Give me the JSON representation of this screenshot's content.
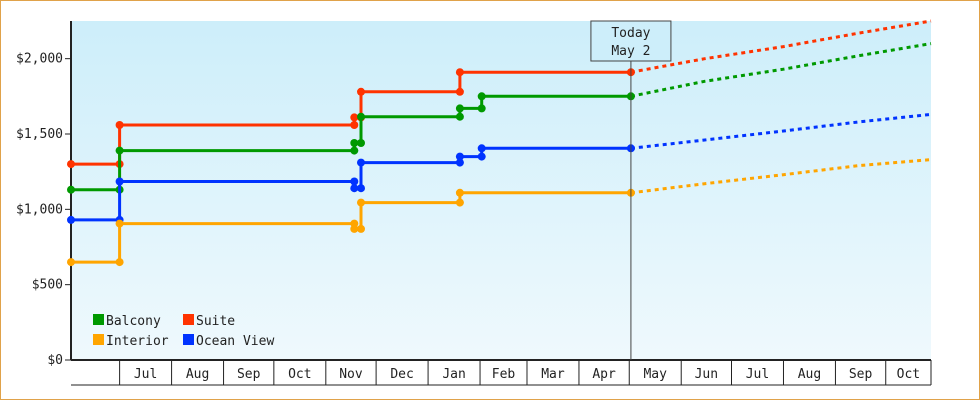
{
  "chart_data": {
    "type": "line",
    "step": true,
    "y_axis": {
      "min": 0,
      "max": 2250,
      "ticks": [
        {
          "value": 0,
          "label": "$0"
        },
        {
          "value": 500,
          "label": "$500"
        },
        {
          "value": 1000,
          "label": "$1,000"
        },
        {
          "value": 1500,
          "label": "$1,500"
        },
        {
          "value": 2000,
          "label": "$2,000"
        }
      ]
    },
    "x_axis": {
      "start": "2024-06-02",
      "end": "2025-10-28",
      "month_labels": [
        {
          "label": "Jul",
          "start": "2024-07-01",
          "end": "2024-08-01"
        },
        {
          "label": "Aug",
          "start": "2024-08-01",
          "end": "2024-09-01"
        },
        {
          "label": "Sep",
          "start": "2024-09-01",
          "end": "2024-10-01"
        },
        {
          "label": "Oct",
          "start": "2024-10-01",
          "end": "2024-11-01"
        },
        {
          "label": "Nov",
          "start": "2024-11-01",
          "end": "2024-12-01"
        },
        {
          "label": "Dec",
          "start": "2024-12-01",
          "end": "2025-01-01"
        },
        {
          "label": "Jan",
          "start": "2025-01-01",
          "end": "2025-02-01"
        },
        {
          "label": "Feb",
          "start": "2025-02-01",
          "end": "2025-03-01"
        },
        {
          "label": "Mar",
          "start": "2025-03-01",
          "end": "2025-04-01"
        },
        {
          "label": "Apr",
          "start": "2025-04-01",
          "end": "2025-05-01"
        },
        {
          "label": "May",
          "start": "2025-05-01",
          "end": "2025-06-01"
        },
        {
          "label": "Jun",
          "start": "2025-06-01",
          "end": "2025-07-01"
        },
        {
          "label": "Jul",
          "start": "2025-07-01",
          "end": "2025-08-01"
        },
        {
          "label": "Aug",
          "start": "2025-08-01",
          "end": "2025-09-01"
        },
        {
          "label": "Sep",
          "start": "2025-09-01",
          "end": "2025-10-01"
        },
        {
          "label": "Oct",
          "start": "2025-10-01",
          "end": "2025-10-28"
        }
      ]
    },
    "today": {
      "date": "2025-05-02",
      "label_line1": "Today",
      "label_line2": "May 2"
    },
    "series": [
      {
        "name": "Suite",
        "color": "#ff3300",
        "history": [
          [
            "2024-06-02",
            1300
          ],
          [
            "2024-07-01",
            1300
          ],
          [
            "2024-07-01",
            1560
          ],
          [
            "2024-11-18",
            1560
          ],
          [
            "2024-11-18",
            1610
          ],
          [
            "2024-11-22",
            1610
          ],
          [
            "2024-11-22",
            1780
          ],
          [
            "2025-01-20",
            1780
          ],
          [
            "2025-01-20",
            1910
          ],
          [
            "2025-05-02",
            1910
          ]
        ],
        "markers": [
          [
            "2024-06-02",
            1300
          ],
          [
            "2024-07-01",
            1300
          ],
          [
            "2024-07-01",
            1560
          ],
          [
            "2024-11-18",
            1560
          ],
          [
            "2024-11-18",
            1610
          ],
          [
            "2024-11-22",
            1610
          ],
          [
            "2024-11-22",
            1780
          ],
          [
            "2025-01-20",
            1780
          ],
          [
            "2025-01-20",
            1910
          ],
          [
            "2025-05-02",
            1910
          ]
        ],
        "forecast": [
          [
            "2025-05-02",
            1910
          ],
          [
            "2025-06-15",
            2000
          ],
          [
            "2025-08-01",
            2080
          ],
          [
            "2025-09-15",
            2170
          ],
          [
            "2025-10-28",
            2250
          ]
        ]
      },
      {
        "name": "Balcony",
        "color": "#009900",
        "history": [
          [
            "2024-06-02",
            1130
          ],
          [
            "2024-07-01",
            1130
          ],
          [
            "2024-07-01",
            1390
          ],
          [
            "2024-11-18",
            1390
          ],
          [
            "2024-11-18",
            1440
          ],
          [
            "2024-11-22",
            1440
          ],
          [
            "2024-11-22",
            1615
          ],
          [
            "2025-01-20",
            1615
          ],
          [
            "2025-01-20",
            1670
          ],
          [
            "2025-02-02",
            1670
          ],
          [
            "2025-02-02",
            1750
          ],
          [
            "2025-05-02",
            1750
          ]
        ],
        "markers": [
          [
            "2024-06-02",
            1130
          ],
          [
            "2024-07-01",
            1130
          ],
          [
            "2024-07-01",
            1390
          ],
          [
            "2024-11-18",
            1390
          ],
          [
            "2024-11-18",
            1440
          ],
          [
            "2024-11-22",
            1440
          ],
          [
            "2024-11-22",
            1615
          ],
          [
            "2025-01-20",
            1615
          ],
          [
            "2025-01-20",
            1670
          ],
          [
            "2025-02-02",
            1670
          ],
          [
            "2025-02-02",
            1750
          ],
          [
            "2025-05-02",
            1750
          ]
        ],
        "forecast": [
          [
            "2025-05-02",
            1750
          ],
          [
            "2025-06-15",
            1850
          ],
          [
            "2025-08-01",
            1930
          ],
          [
            "2025-09-15",
            2020
          ],
          [
            "2025-10-28",
            2100
          ]
        ]
      },
      {
        "name": "Ocean View",
        "color": "#0033ff",
        "history": [
          [
            "2024-06-02",
            930
          ],
          [
            "2024-07-01",
            930
          ],
          [
            "2024-07-01",
            1185
          ],
          [
            "2024-11-18",
            1185
          ],
          [
            "2024-11-18",
            1140
          ],
          [
            "2024-11-22",
            1140
          ],
          [
            "2024-11-22",
            1310
          ],
          [
            "2025-01-20",
            1310
          ],
          [
            "2025-01-20",
            1350
          ],
          [
            "2025-02-02",
            1350
          ],
          [
            "2025-02-02",
            1405
          ],
          [
            "2025-05-02",
            1405
          ]
        ],
        "markers": [
          [
            "2024-06-02",
            930
          ],
          [
            "2024-07-01",
            930
          ],
          [
            "2024-07-01",
            1185
          ],
          [
            "2024-11-18",
            1185
          ],
          [
            "2024-11-18",
            1140
          ],
          [
            "2024-11-22",
            1140
          ],
          [
            "2024-11-22",
            1310
          ],
          [
            "2025-01-20",
            1310
          ],
          [
            "2025-01-20",
            1350
          ],
          [
            "2025-02-02",
            1350
          ],
          [
            "2025-02-02",
            1405
          ],
          [
            "2025-05-02",
            1405
          ]
        ],
        "forecast": [
          [
            "2025-05-02",
            1405
          ],
          [
            "2025-06-15",
            1460
          ],
          [
            "2025-08-01",
            1520
          ],
          [
            "2025-09-15",
            1580
          ],
          [
            "2025-10-28",
            1630
          ]
        ]
      },
      {
        "name": "Interior",
        "color": "#ffa500",
        "history": [
          [
            "2024-06-02",
            650
          ],
          [
            "2024-07-01",
            650
          ],
          [
            "2024-07-01",
            905
          ],
          [
            "2024-11-18",
            905
          ],
          [
            "2024-11-18",
            870
          ],
          [
            "2024-11-22",
            870
          ],
          [
            "2024-11-22",
            1045
          ],
          [
            "2025-01-20",
            1045
          ],
          [
            "2025-01-20",
            1110
          ],
          [
            "2025-05-02",
            1110
          ]
        ],
        "markers": [
          [
            "2024-06-02",
            650
          ],
          [
            "2024-07-01",
            650
          ],
          [
            "2024-07-01",
            905
          ],
          [
            "2024-11-18",
            905
          ],
          [
            "2024-11-18",
            870
          ],
          [
            "2024-11-22",
            870
          ],
          [
            "2024-11-22",
            1045
          ],
          [
            "2025-01-20",
            1045
          ],
          [
            "2025-01-20",
            1110
          ],
          [
            "2025-05-02",
            1110
          ]
        ],
        "forecast": [
          [
            "2025-05-02",
            1110
          ],
          [
            "2025-06-15",
            1170
          ],
          [
            "2025-08-01",
            1230
          ],
          [
            "2025-09-15",
            1290
          ],
          [
            "2025-10-28",
            1330
          ]
        ]
      }
    ],
    "legend": {
      "placement": "bottom-left",
      "items": [
        {
          "name": "Balcony",
          "color": "#009900"
        },
        {
          "name": "Suite",
          "color": "#ff3300"
        },
        {
          "name": "Interior",
          "color": "#ffa500"
        },
        {
          "name": "Ocean View",
          "color": "#0033ff"
        }
      ]
    },
    "colors": {
      "frame_border": "#e0a24a",
      "plot_bg_top": "#cdeefa",
      "plot_bg_bottom": "#eff9fd",
      "axis": "#222222"
    }
  }
}
